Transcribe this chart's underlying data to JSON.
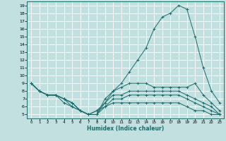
{
  "xlabel": "Humidex (Indice chaleur)",
  "xlim": [
    -0.5,
    23.5
  ],
  "ylim": [
    4.5,
    19.5
  ],
  "yticks": [
    5,
    6,
    7,
    8,
    9,
    10,
    11,
    12,
    13,
    14,
    15,
    16,
    17,
    18,
    19
  ],
  "xticks": [
    0,
    1,
    2,
    3,
    4,
    5,
    6,
    7,
    8,
    9,
    10,
    11,
    12,
    13,
    14,
    15,
    16,
    17,
    18,
    19,
    20,
    21,
    22,
    23
  ],
  "bg_color": "#c2e0e0",
  "line_color": "#1a6b6b",
  "grid_color": "#ffffff",
  "lines": [
    {
      "x": [
        0,
        1,
        2,
        3,
        4,
        5,
        6,
        7,
        8,
        9,
        10,
        11,
        12,
        13,
        14,
        15,
        16,
        17,
        18,
        19,
        20,
        21,
        22,
        23
      ],
      "y": [
        9,
        8,
        7.5,
        7.5,
        7,
        6.5,
        5.5,
        5,
        5,
        6.5,
        8,
        9,
        10.5,
        12,
        13.5,
        16,
        17.5,
        18,
        19,
        18.5,
        15,
        11,
        8,
        6.5
      ]
    },
    {
      "x": [
        0,
        1,
        2,
        3,
        4,
        5,
        6,
        7,
        8,
        9,
        10,
        11,
        12,
        13,
        14,
        15,
        16,
        17,
        18,
        19,
        20,
        21,
        22,
        23
      ],
      "y": [
        9,
        8,
        7.5,
        7.5,
        7,
        6.5,
        5.5,
        5,
        5,
        7,
        8,
        8.5,
        9,
        9,
        9,
        8.5,
        8.5,
        8.5,
        8.5,
        8.5,
        9,
        7.5,
        6.5,
        5.5
      ]
    },
    {
      "x": [
        0,
        1,
        2,
        3,
        4,
        5,
        6,
        7,
        8,
        9,
        10,
        11,
        12,
        13,
        14,
        15,
        16,
        17,
        18,
        19,
        20,
        21,
        22,
        23
      ],
      "y": [
        9,
        8,
        7.5,
        7.5,
        7,
        6.5,
        5.5,
        5,
        5.5,
        6.5,
        7.5,
        7.5,
        8,
        8,
        8,
        8,
        8,
        8,
        8,
        7.5,
        7,
        6.5,
        6,
        5
      ]
    },
    {
      "x": [
        0,
        1,
        2,
        3,
        4,
        5,
        6,
        7,
        8,
        9,
        10,
        11,
        12,
        13,
        14,
        15,
        16,
        17,
        18,
        19,
        20,
        21,
        22,
        23
      ],
      "y": [
        9,
        8,
        7.5,
        7.5,
        7,
        6,
        5.5,
        5,
        5,
        6,
        7,
        7,
        7.5,
        7.5,
        7.5,
        7.5,
        7.5,
        7.5,
        7.5,
        7,
        6.5,
        6,
        5.5,
        5
      ]
    },
    {
      "x": [
        0,
        1,
        2,
        3,
        4,
        5,
        6,
        7,
        8,
        9,
        10,
        11,
        12,
        13,
        14,
        15,
        16,
        17,
        18,
        19,
        20,
        21,
        22,
        23
      ],
      "y": [
        9,
        8,
        7.5,
        7.5,
        6.5,
        6,
        5.5,
        5,
        5.5,
        6,
        6.5,
        6.5,
        6.5,
        6.5,
        6.5,
        6.5,
        6.5,
        6.5,
        6.5,
        6,
        5.5,
        5.5,
        5,
        5
      ]
    }
  ]
}
